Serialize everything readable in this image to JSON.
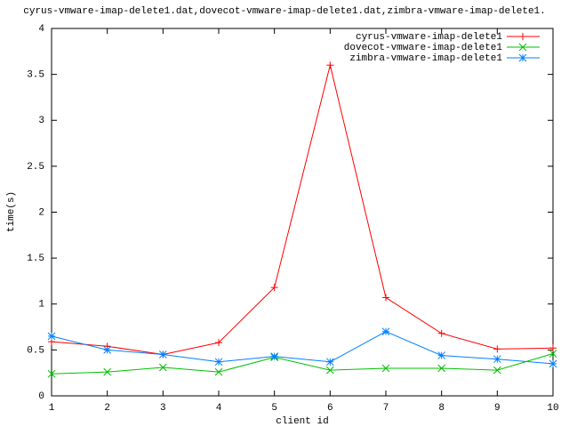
{
  "chart_data": {
    "type": "line",
    "title": "cyrus-vmware-imap-delete1.dat,dovecot-vmware-imap-delete1.dat,zimbra-vmware-imap-delete1.",
    "x_label": "client id",
    "y_label": "time(s)",
    "x": [
      1,
      2,
      3,
      4,
      5,
      6,
      7,
      8,
      9,
      10
    ],
    "series": [
      {
        "name": "cyrus-vmware-imap-delete1",
        "color": "#ff0000",
        "marker": "+",
        "values": [
          0.59,
          0.54,
          0.45,
          0.58,
          1.18,
          3.6,
          1.07,
          0.68,
          0.51,
          0.52
        ]
      },
      {
        "name": "dovecot-vmware-imap-delete1",
        "color": "#00c000",
        "marker": "x",
        "values": [
          0.24,
          0.26,
          0.31,
          0.26,
          0.42,
          0.28,
          0.3,
          0.3,
          0.28,
          0.46
        ]
      },
      {
        "name": "zimbra-vmware-imap-delete1",
        "color": "#0080ff",
        "marker": "*",
        "values": [
          0.65,
          0.5,
          0.45,
          0.37,
          0.43,
          0.37,
          0.7,
          0.44,
          0.4,
          0.35
        ]
      }
    ],
    "xlim": [
      1,
      10
    ],
    "xticks": [
      1,
      2,
      3,
      4,
      5,
      6,
      7,
      8,
      9,
      10
    ],
    "ylim": [
      0,
      4
    ],
    "yticks": [
      0,
      0.5,
      1,
      1.5,
      2,
      2.5,
      3,
      3.5,
      4
    ],
    "grid": false,
    "legend": "top-right"
  }
}
